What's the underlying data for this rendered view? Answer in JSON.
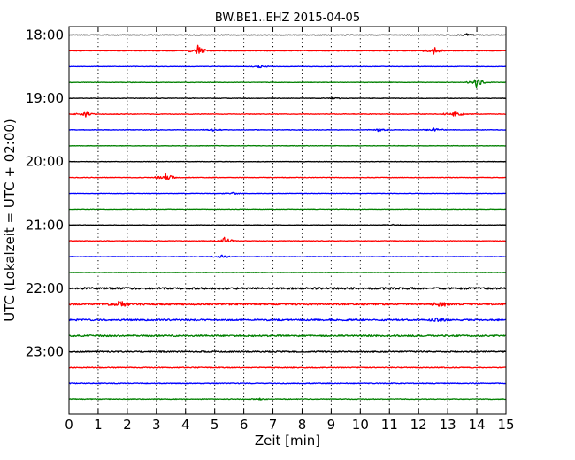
{
  "chart_data": {
    "type": "line",
    "title": "BW.BE1..EHZ 2015-04-05",
    "xlabel": "Zeit  [min]",
    "ylabel": "UTC (Lokalzeit = UTC + 02:00)",
    "xlim": [
      0,
      15
    ],
    "x_ticks": [
      "0",
      "1",
      "2",
      "3",
      "4",
      "5",
      "6",
      "7",
      "8",
      "9",
      "10",
      "11",
      "12",
      "13",
      "14",
      "15"
    ],
    "y_tick_labels": [
      "18:00",
      "19:00",
      "20:00",
      "21:00",
      "22:00",
      "23:00"
    ],
    "grid": "vertical dotted",
    "row_interval_min": 15,
    "colors": [
      "#000000",
      "#ff0000",
      "#0000ff",
      "#008000"
    ],
    "traces": [
      {
        "start": "18:00",
        "color": "#000000",
        "noise": 0.25,
        "events": [
          {
            "t": 13.6,
            "a": 1.5
          }
        ]
      },
      {
        "start": "18:15",
        "color": "#ff0000",
        "noise": 0.3,
        "events": [
          {
            "t": 4.4,
            "a": 6
          },
          {
            "t": 12.5,
            "a": 5
          }
        ]
      },
      {
        "start": "18:30",
        "color": "#0000ff",
        "noise": 0.25,
        "events": [
          {
            "t": 6.5,
            "a": 1.5
          }
        ]
      },
      {
        "start": "18:45",
        "color": "#008000",
        "noise": 0.25,
        "events": [
          {
            "t": 13.95,
            "a": 7
          }
        ]
      },
      {
        "start": "19:00",
        "color": "#000000",
        "noise": 0.3,
        "events": [
          {
            "t": 9.0,
            "a": 0.8
          }
        ]
      },
      {
        "start": "19:15",
        "color": "#ff0000",
        "noise": 0.35,
        "events": [
          {
            "t": 0.5,
            "a": 4
          },
          {
            "t": 13.2,
            "a": 4
          }
        ]
      },
      {
        "start": "19:30",
        "color": "#0000ff",
        "noise": 0.3,
        "events": [
          {
            "t": 4.9,
            "a": 1.2
          },
          {
            "t": 10.6,
            "a": 1.5
          },
          {
            "t": 12.5,
            "a": 2
          }
        ]
      },
      {
        "start": "19:45",
        "color": "#008000",
        "noise": 0.25,
        "events": []
      },
      {
        "start": "20:00",
        "color": "#000000",
        "noise": 0.25,
        "events": []
      },
      {
        "start": "20:15",
        "color": "#ff0000",
        "noise": 0.3,
        "events": [
          {
            "t": 3.3,
            "a": 5
          }
        ]
      },
      {
        "start": "20:30",
        "color": "#0000ff",
        "noise": 0.25,
        "events": [
          {
            "t": 5.6,
            "a": 1
          }
        ]
      },
      {
        "start": "20:45",
        "color": "#008000",
        "noise": 0.25,
        "events": []
      },
      {
        "start": "21:00",
        "color": "#000000",
        "noise": 0.25,
        "events": [
          {
            "t": 11.1,
            "a": 1.2
          }
        ]
      },
      {
        "start": "21:15",
        "color": "#ff0000",
        "noise": 0.3,
        "events": [
          {
            "t": 5.3,
            "a": 5
          }
        ]
      },
      {
        "start": "21:30",
        "color": "#0000ff",
        "noise": 0.3,
        "events": [
          {
            "t": 5.2,
            "a": 2
          }
        ]
      },
      {
        "start": "21:45",
        "color": "#008000",
        "noise": 0.25,
        "events": []
      },
      {
        "start": "22:00",
        "color": "#000000",
        "noise": 1.1,
        "events": []
      },
      {
        "start": "22:15",
        "color": "#ff0000",
        "noise": 1.0,
        "events": [
          {
            "t": 1.7,
            "a": 4
          },
          {
            "t": 12.7,
            "a": 4
          }
        ]
      },
      {
        "start": "22:30",
        "color": "#0000ff",
        "noise": 0.9,
        "events": [
          {
            "t": 12.6,
            "a": 2
          }
        ]
      },
      {
        "start": "22:45",
        "color": "#008000",
        "noise": 0.9,
        "events": []
      },
      {
        "start": "23:00",
        "color": "#000000",
        "noise": 0.7,
        "events": []
      },
      {
        "start": "23:15",
        "color": "#ff0000",
        "noise": 0.5,
        "events": []
      },
      {
        "start": "23:30",
        "color": "#0000ff",
        "noise": 0.45,
        "events": []
      },
      {
        "start": "23:45",
        "color": "#008000",
        "noise": 0.4,
        "events": [
          {
            "t": 6.5,
            "a": 0.8
          }
        ]
      }
    ]
  }
}
